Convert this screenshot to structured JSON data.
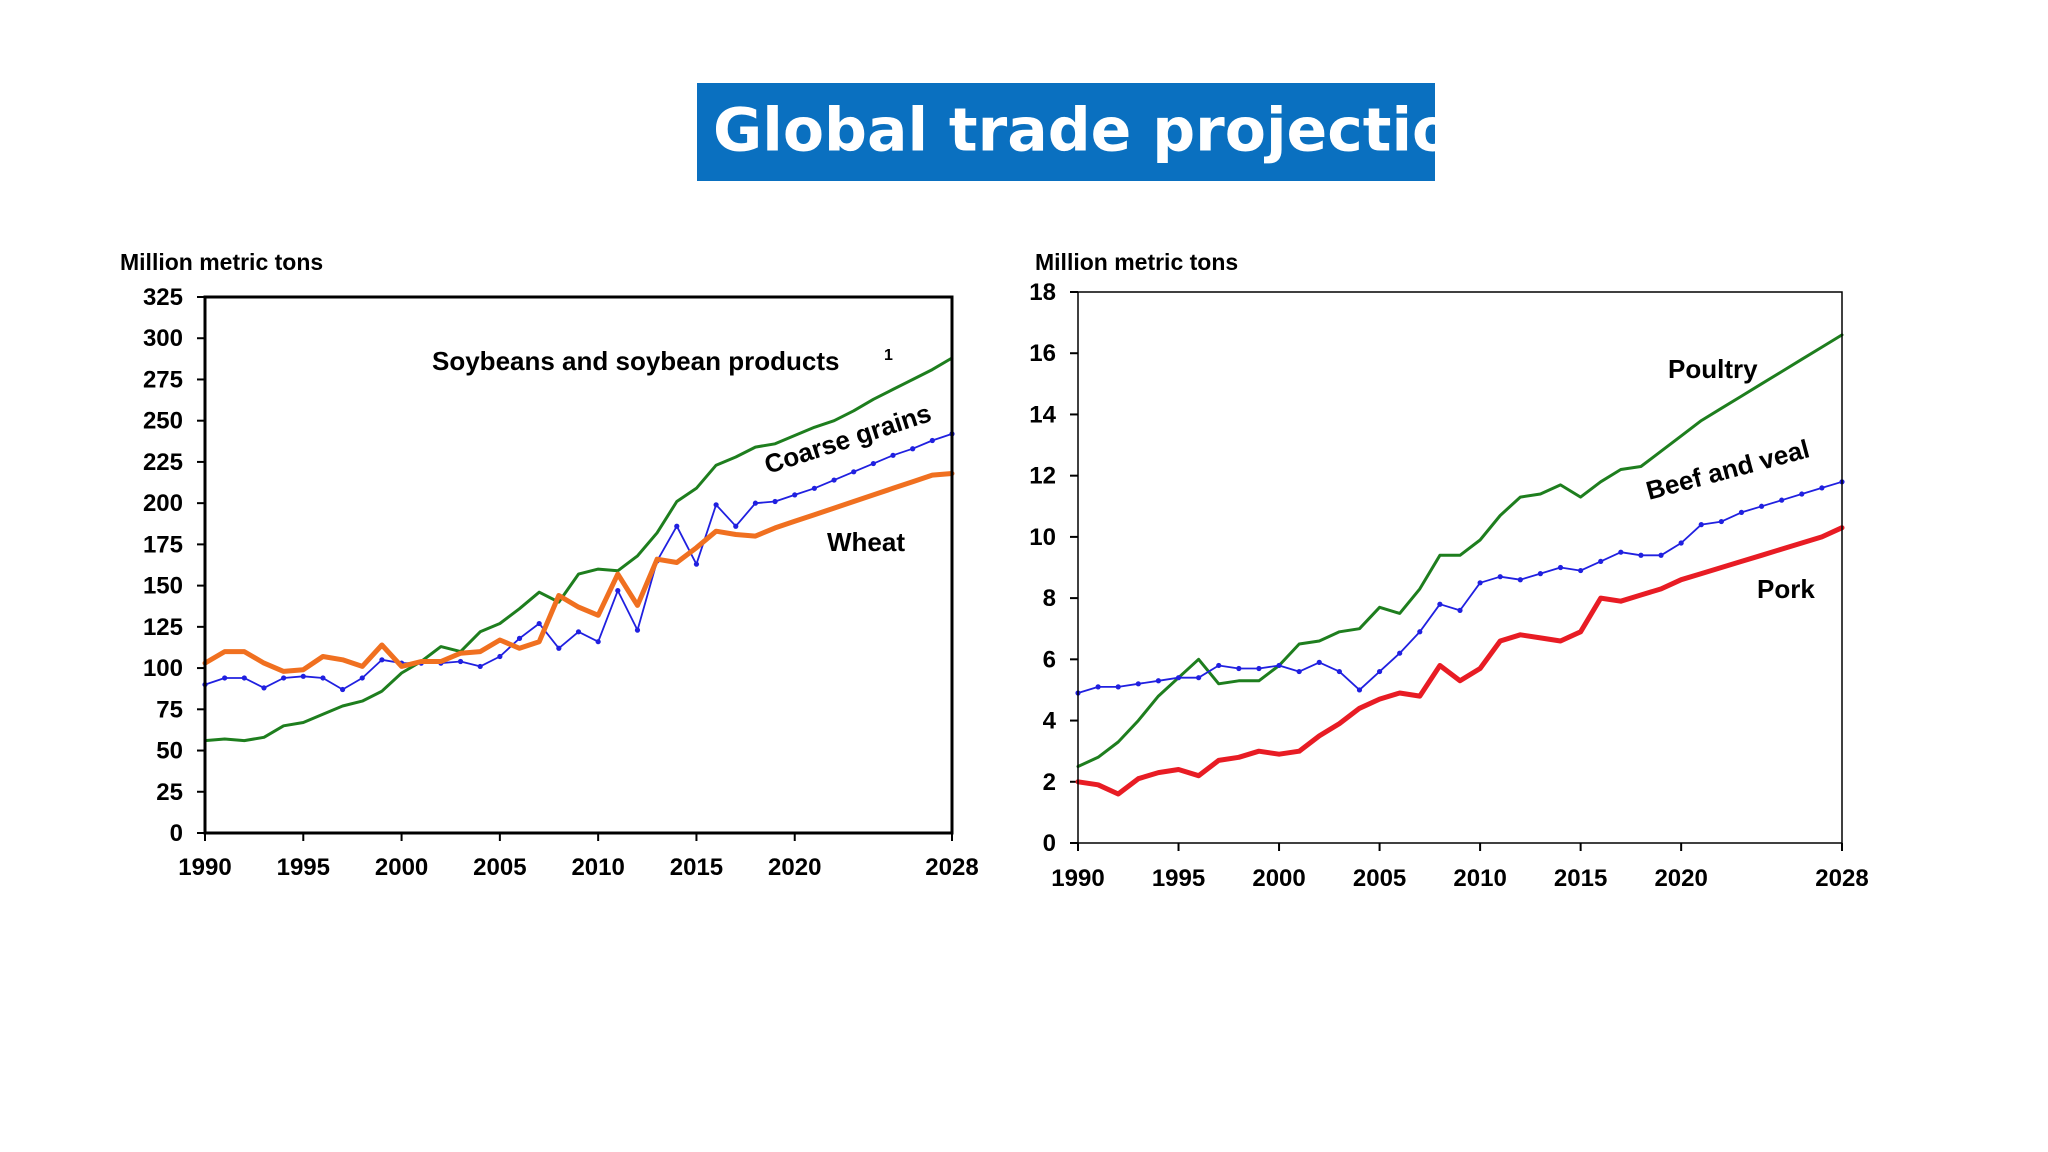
{
  "slide": {
    "title": "Global trade projections"
  },
  "colors": {
    "title_bg": "#0a70c0",
    "green": "#1e7e1e",
    "orange": "#f07020",
    "blue": "#2020e0",
    "red": "#e81c24"
  },
  "chart_data": [
    {
      "type": "line",
      "title": "",
      "ylabel": "Million metric tons",
      "xlabel": "",
      "xlim": [
        1990,
        2028
      ],
      "ylim": [
        0,
        325
      ],
      "x_ticks": [
        "1990",
        "1995",
        "2000",
        "2005",
        "2010",
        "2015",
        "2020",
        "2028"
      ],
      "y_ticks": [
        "0",
        "25",
        "50",
        "75",
        "100",
        "125",
        "150",
        "175",
        "200",
        "225",
        "250",
        "275",
        "300",
        "325"
      ],
      "grid": false,
      "series": [
        {
          "name": "Soybeans and soybean products",
          "footnote": "1",
          "color": "#1e7e1e",
          "markers": false,
          "width": 3,
          "x": [
            1990,
            1991,
            1992,
            1993,
            1994,
            1995,
            1996,
            1997,
            1998,
            1999,
            2000,
            2001,
            2002,
            2003,
            2004,
            2005,
            2006,
            2007,
            2008,
            2009,
            2010,
            2011,
            2012,
            2013,
            2014,
            2015,
            2016,
            2017,
            2018,
            2019,
            2020,
            2021,
            2022,
            2023,
            2024,
            2025,
            2026,
            2027,
            2028
          ],
          "values": [
            56,
            57,
            56,
            58,
            65,
            67,
            72,
            77,
            80,
            86,
            97,
            104,
            113,
            110,
            122,
            127,
            136,
            146,
            140,
            157,
            160,
            159,
            168,
            182,
            201,
            209,
            223,
            228,
            234,
            236,
            241,
            246,
            250,
            256,
            263,
            269,
            275,
            281,
            288
          ]
        },
        {
          "name": "Coarse grains",
          "color": "#2020e0",
          "markers": true,
          "width": 1.8,
          "x": [
            1990,
            1991,
            1992,
            1993,
            1994,
            1995,
            1996,
            1997,
            1998,
            1999,
            2000,
            2001,
            2002,
            2003,
            2004,
            2005,
            2006,
            2007,
            2008,
            2009,
            2010,
            2011,
            2012,
            2013,
            2014,
            2015,
            2016,
            2017,
            2018,
            2019,
            2020,
            2021,
            2022,
            2023,
            2024,
            2025,
            2026,
            2027,
            2028
          ],
          "values": [
            90,
            94,
            94,
            88,
            94,
            95,
            94,
            87,
            94,
            105,
            103,
            103,
            103,
            104,
            101,
            107,
            118,
            127,
            112,
            122,
            116,
            147,
            123,
            165,
            186,
            163,
            199,
            186,
            200,
            201,
            205,
            209,
            214,
            219,
            224,
            229,
            233,
            238,
            242
          ]
        },
        {
          "name": "Wheat",
          "color": "#f07020",
          "markers": false,
          "width": 5,
          "x": [
            1990,
            1991,
            1992,
            1993,
            1994,
            1995,
            1996,
            1997,
            1998,
            1999,
            2000,
            2001,
            2002,
            2003,
            2004,
            2005,
            2006,
            2007,
            2008,
            2009,
            2010,
            2011,
            2012,
            2013,
            2014,
            2015,
            2016,
            2017,
            2018,
            2019,
            2020,
            2021,
            2022,
            2023,
            2024,
            2025,
            2026,
            2027,
            2028
          ],
          "values": [
            103,
            110,
            110,
            103,
            98,
            99,
            107,
            105,
            101,
            114,
            101,
            104,
            104,
            109,
            110,
            117,
            112,
            116,
            144,
            137,
            132,
            157,
            138,
            166,
            164,
            173,
            183,
            181,
            180,
            185,
            189,
            193,
            197,
            201,
            205,
            209,
            213,
            217,
            218
          ]
        }
      ],
      "annotations": [
        "Soybeans and soybean products",
        "Coarse grains",
        "Wheat"
      ]
    },
    {
      "type": "line",
      "title": "",
      "ylabel": "Million metric tons",
      "xlabel": "",
      "xlim": [
        1990,
        2028
      ],
      "ylim": [
        0,
        18
      ],
      "x_ticks": [
        "1990",
        "1995",
        "2000",
        "2005",
        "2010",
        "2015",
        "2020",
        "2028"
      ],
      "y_ticks": [
        "0",
        "2",
        "4",
        "6",
        "8",
        "10",
        "12",
        "14",
        "16",
        "18"
      ],
      "grid": false,
      "series": [
        {
          "name": "Poultry",
          "color": "#1e7e1e",
          "markers": false,
          "width": 3,
          "x": [
            1990,
            1991,
            1992,
            1993,
            1994,
            1995,
            1996,
            1997,
            1998,
            1999,
            2000,
            2001,
            2002,
            2003,
            2004,
            2005,
            2006,
            2007,
            2008,
            2009,
            2010,
            2011,
            2012,
            2013,
            2014,
            2015,
            2016,
            2017,
            2018,
            2019,
            2020,
            2021,
            2022,
            2023,
            2024,
            2025,
            2026,
            2027,
            2028
          ],
          "values": [
            2.5,
            2.8,
            3.3,
            4.0,
            4.8,
            5.4,
            6.0,
            5.2,
            5.3,
            5.3,
            5.8,
            6.5,
            6.6,
            6.9,
            7.0,
            7.7,
            7.5,
            8.3,
            9.4,
            9.4,
            9.9,
            10.7,
            11.3,
            11.4,
            11.7,
            11.3,
            11.8,
            12.2,
            12.3,
            12.8,
            13.3,
            13.8,
            14.2,
            14.6,
            15.0,
            15.4,
            15.8,
            16.2,
            16.6
          ]
        },
        {
          "name": "Beef and veal",
          "color": "#2020e0",
          "markers": true,
          "width": 1.8,
          "x": [
            1990,
            1991,
            1992,
            1993,
            1994,
            1995,
            1996,
            1997,
            1998,
            1999,
            2000,
            2001,
            2002,
            2003,
            2004,
            2005,
            2006,
            2007,
            2008,
            2009,
            2010,
            2011,
            2012,
            2013,
            2014,
            2015,
            2016,
            2017,
            2018,
            2019,
            2020,
            2021,
            2022,
            2023,
            2024,
            2025,
            2026,
            2027,
            2028
          ],
          "values": [
            4.9,
            5.1,
            5.1,
            5.2,
            5.3,
            5.4,
            5.4,
            5.8,
            5.7,
            5.7,
            5.8,
            5.6,
            5.9,
            5.6,
            5.0,
            5.6,
            6.2,
            6.9,
            7.8,
            7.6,
            8.5,
            8.7,
            8.6,
            8.8,
            9.0,
            8.9,
            9.2,
            9.5,
            9.4,
            9.4,
            9.8,
            10.4,
            10.5,
            10.8,
            11.0,
            11.2,
            11.4,
            11.6,
            11.8
          ]
        },
        {
          "name": "Pork",
          "color": "#e81c24",
          "markers": false,
          "width": 5,
          "x": [
            1990,
            1991,
            1992,
            1993,
            1994,
            1995,
            1996,
            1997,
            1998,
            1999,
            2000,
            2001,
            2002,
            2003,
            2004,
            2005,
            2006,
            2007,
            2008,
            2009,
            2010,
            2011,
            2012,
            2013,
            2014,
            2015,
            2016,
            2017,
            2018,
            2019,
            2020,
            2021,
            2022,
            2023,
            2024,
            2025,
            2026,
            2027,
            2028
          ],
          "values": [
            2.0,
            1.9,
            1.6,
            2.1,
            2.3,
            2.4,
            2.2,
            2.7,
            2.8,
            3.0,
            2.9,
            3.0,
            3.5,
            3.9,
            4.4,
            4.7,
            4.9,
            4.8,
            5.8,
            5.3,
            5.7,
            6.6,
            6.8,
            6.7,
            6.6,
            6.9,
            8.0,
            7.9,
            8.1,
            8.3,
            8.6,
            8.8,
            9.0,
            9.2,
            9.4,
            9.6,
            9.8,
            10.0,
            10.3
          ]
        }
      ],
      "annotations": [
        "Poultry",
        "Beef and veal",
        "Pork"
      ]
    }
  ]
}
